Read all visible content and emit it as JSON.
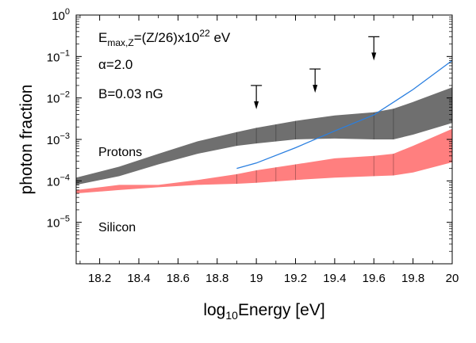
{
  "chart_data": {
    "type": "area",
    "xlabel": "log₁₀Energy [eV]",
    "xlabel_parts": {
      "prefix": "log",
      "sub": "10",
      "suffix": "Energy [eV]"
    },
    "ylabel": "photon fraction",
    "xlim": [
      18.08,
      20.0
    ],
    "ylim_log10": [
      -6,
      0
    ],
    "y_scale": "log",
    "grid": false,
    "x_ticks": [
      "18.2",
      "18.4",
      "18.6",
      "18.8",
      "19",
      "19.2",
      "19.4",
      "19.6",
      "19.8",
      "20"
    ],
    "x_tick_values": [
      18.2,
      18.4,
      18.6,
      18.8,
      19.0,
      19.2,
      19.4,
      19.6,
      19.8,
      20.0
    ],
    "y_tick_exponents": [
      0,
      -1,
      -2,
      -3,
      -4,
      -5
    ],
    "y_tick_base": "10",
    "annotations": {
      "emax": {
        "base": "E",
        "sub": "max,Z",
        "mid": "=(Z/26)x10",
        "sup": "22",
        "tail": " eV"
      },
      "alpha": "α=2.0",
      "bfield": "B=0.03 nG"
    },
    "band_labels": {
      "protons": "Protons",
      "silicon": "Silicon"
    },
    "colors": {
      "protons": "#6f6f6f",
      "silicon": "#ff7f7f",
      "limit_line": "#2a7fe0"
    },
    "series": [
      {
        "name": "Protons",
        "kind": "band",
        "x": [
          18.08,
          18.3,
          18.5,
          18.7,
          18.9,
          19.0,
          19.2,
          19.4,
          19.6,
          19.7,
          19.8,
          20.0
        ],
        "lower": [
          8e-05,
          0.00013,
          0.00025,
          0.00045,
          0.0007,
          0.0008,
          0.001,
          0.00105,
          0.001,
          0.001,
          0.0013,
          0.0025
        ],
        "upper": [
          0.00012,
          0.00022,
          0.00045,
          0.0009,
          0.0015,
          0.0019,
          0.0028,
          0.0038,
          0.0045,
          0.0055,
          0.008,
          0.018
        ]
      },
      {
        "name": "Silicon",
        "kind": "band",
        "x": [
          18.08,
          18.3,
          18.5,
          18.7,
          18.9,
          19.0,
          19.2,
          19.4,
          19.6,
          19.7,
          19.8,
          20.0
        ],
        "lower": [
          5e-05,
          6e-05,
          7e-05,
          8e-05,
          8.5e-05,
          9e-05,
          0.000105,
          0.00012,
          0.00013,
          0.000135,
          0.00016,
          0.00028
        ],
        "upper": [
          6e-05,
          8e-05,
          8e-05,
          0.000105,
          0.000145,
          0.00018,
          0.00025,
          0.00035,
          0.0004,
          0.00045,
          0.0007,
          0.0018
        ]
      },
      {
        "kind": "line",
        "x": [
          18.9,
          19.0,
          19.2,
          19.4,
          19.6,
          19.8,
          20.0
        ],
        "y": [
          0.0002,
          0.00027,
          0.00063,
          0.0016,
          0.0039,
          0.016,
          0.08
        ]
      }
    ],
    "upper_limits": [
      {
        "x": 19.0,
        "y": 0.02
      },
      {
        "x": 19.3,
        "y": 0.05
      },
      {
        "x": 19.6,
        "y": 0.3
      }
    ],
    "band_separators_x": [
      18.9,
      19.0,
      19.1,
      19.2,
      19.6,
      19.7
    ]
  }
}
